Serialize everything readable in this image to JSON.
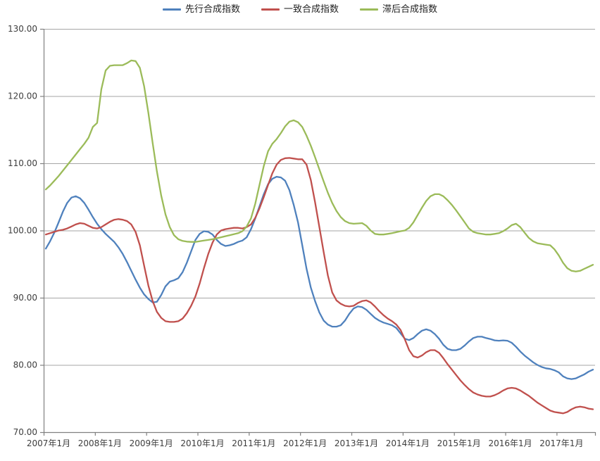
{
  "chart_data": {
    "type": "line",
    "title": "",
    "x_unit": "monthly",
    "x_start_label": "2007年1月",
    "x_end_label": "2017年9月",
    "x_tick_labels": [
      "2007年1月",
      "2008年1月",
      "2009年1月",
      "2010年1月",
      "2011年1月",
      "2012年1月",
      "2013年1月",
      "2014年1月",
      "2015年1月",
      "2016年1月",
      "2017年1月"
    ],
    "y_tick_labels": [
      "130.00",
      "120.00",
      "110.00",
      "100.00",
      "90.00",
      "80.00",
      "70.00"
    ],
    "ylim": [
      70,
      130
    ],
    "y_tick_step": 10,
    "grid": "horizontal-only",
    "legend_position": "top-center",
    "background_color": "#FFFFFF",
    "gridline_color": "#A6A6A6",
    "axis_color": "#808080",
    "text_color": "#3D3D3D",
    "series": [
      {
        "id": "leading",
        "name": "先行合成指数",
        "color": "#4F81BD",
        "start": "2007-01",
        "values": [
          97.3,
          98.4,
          99.7,
          101.2,
          102.8,
          104.1,
          104.9,
          105.1,
          104.8,
          104.1,
          103.1,
          102.0,
          101.0,
          100.2,
          99.5,
          98.9,
          98.3,
          97.5,
          96.5,
          95.3,
          94.0,
          92.7,
          91.5,
          90.5,
          89.8,
          89.3,
          89.4,
          90.4,
          91.7,
          92.4,
          92.6,
          92.9,
          93.8,
          95.2,
          96.9,
          98.6,
          99.5,
          99.9,
          99.8,
          99.4,
          98.6,
          98.0,
          97.7,
          97.8,
          98.0,
          98.3,
          98.5,
          99.0,
          100.2,
          101.8,
          103.6,
          105.4,
          106.9,
          107.7,
          108.0,
          107.9,
          107.4,
          106.0,
          103.8,
          101.2,
          97.8,
          94.3,
          91.5,
          89.5,
          87.8,
          86.6,
          86.0,
          85.7,
          85.7,
          85.9,
          86.6,
          87.6,
          88.4,
          88.7,
          88.6,
          88.2,
          87.6,
          87.0,
          86.6,
          86.3,
          86.1,
          85.9,
          85.5,
          84.7,
          83.9,
          83.7,
          84.0,
          84.6,
          85.1,
          85.3,
          85.1,
          84.6,
          83.9,
          83.0,
          82.4,
          82.2,
          82.2,
          82.4,
          82.9,
          83.5,
          84.0,
          84.2,
          84.2,
          84.0,
          83.85,
          83.65,
          83.6,
          83.65,
          83.6,
          83.3,
          82.7,
          82.0,
          81.4,
          80.9,
          80.4,
          80.0,
          79.7,
          79.5,
          79.4,
          79.2,
          78.9,
          78.3,
          78.0,
          77.9,
          78.0,
          78.3,
          78.6,
          79.0,
          79.3
        ]
      },
      {
        "id": "coincident",
        "name": "一致合成指数",
        "color": "#C0504D",
        "start": "2007-01",
        "values": [
          99.4,
          99.6,
          99.8,
          100.0,
          100.1,
          100.3,
          100.6,
          100.9,
          101.1,
          101.0,
          100.7,
          100.4,
          100.3,
          100.5,
          100.9,
          101.3,
          101.6,
          101.7,
          101.6,
          101.4,
          100.9,
          99.8,
          97.8,
          94.8,
          91.8,
          89.5,
          87.9,
          87.0,
          86.5,
          86.4,
          86.4,
          86.5,
          86.9,
          87.7,
          88.8,
          90.2,
          92.1,
          94.4,
          96.5,
          98.2,
          99.4,
          100.0,
          100.2,
          100.3,
          100.4,
          100.4,
          100.3,
          100.5,
          100.9,
          101.9,
          103.3,
          105.0,
          106.8,
          108.5,
          109.8,
          110.5,
          110.75,
          110.8,
          110.7,
          110.6,
          110.6,
          109.8,
          107.5,
          104.2,
          100.5,
          96.8,
          93.3,
          90.8,
          89.6,
          89.1,
          88.8,
          88.7,
          88.8,
          89.2,
          89.5,
          89.6,
          89.3,
          88.7,
          88.0,
          87.4,
          86.9,
          86.5,
          86.0,
          85.2,
          83.8,
          82.2,
          81.3,
          81.1,
          81.4,
          81.9,
          82.2,
          82.2,
          81.8,
          81.0,
          80.1,
          79.3,
          78.5,
          77.7,
          77.0,
          76.4,
          75.9,
          75.6,
          75.4,
          75.3,
          75.3,
          75.5,
          75.8,
          76.2,
          76.5,
          76.6,
          76.5,
          76.2,
          75.8,
          75.4,
          74.9,
          74.4,
          74.0,
          73.6,
          73.2,
          73.0,
          72.9,
          72.8,
          73.0,
          73.4,
          73.7,
          73.8,
          73.7,
          73.5,
          73.4
        ]
      },
      {
        "id": "lagging",
        "name": "滞后合成指数",
        "color": "#9BBB59",
        "start": "2007-01",
        "values": [
          106.1,
          106.7,
          107.4,
          108.1,
          108.9,
          109.7,
          110.5,
          111.3,
          112.1,
          112.9,
          113.8,
          115.4,
          116.0,
          121.0,
          123.8,
          124.5,
          124.6,
          124.6,
          124.6,
          124.9,
          125.3,
          125.2,
          124.2,
          121.5,
          117.5,
          113.0,
          108.8,
          105.2,
          102.4,
          100.5,
          99.3,
          98.7,
          98.45,
          98.35,
          98.3,
          98.3,
          98.4,
          98.5,
          98.6,
          98.7,
          98.85,
          99.0,
          99.15,
          99.3,
          99.45,
          99.6,
          99.9,
          100.6,
          101.8,
          104.0,
          106.8,
          109.6,
          111.8,
          112.9,
          113.6,
          114.5,
          115.5,
          116.2,
          116.4,
          116.1,
          115.4,
          114.1,
          112.6,
          110.9,
          109.1,
          107.3,
          105.6,
          104.1,
          102.9,
          102.0,
          101.4,
          101.1,
          101.0,
          101.05,
          101.1,
          100.7,
          100.0,
          99.5,
          99.4,
          99.4,
          99.5,
          99.6,
          99.75,
          99.9,
          100.0,
          100.4,
          101.2,
          102.3,
          103.4,
          104.4,
          105.1,
          105.4,
          105.4,
          105.1,
          104.5,
          103.8,
          103.0,
          102.1,
          101.2,
          100.3,
          99.8,
          99.6,
          99.5,
          99.4,
          99.4,
          99.5,
          99.6,
          99.9,
          100.3,
          100.8,
          101.0,
          100.5,
          99.7,
          98.9,
          98.4,
          98.1,
          98.0,
          97.9,
          97.8,
          97.2,
          96.3,
          95.2,
          94.4,
          94.0,
          93.9,
          94.0,
          94.3,
          94.6,
          94.9
        ]
      }
    ]
  }
}
